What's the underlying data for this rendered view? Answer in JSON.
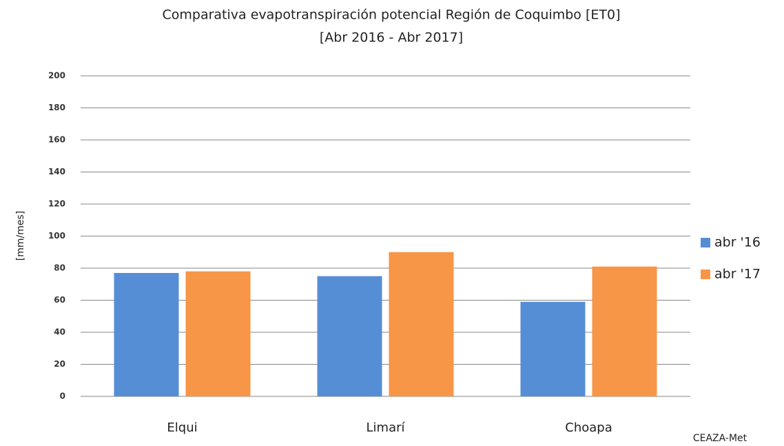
{
  "chart_data": {
    "type": "bar",
    "title": "Comparativa evapotranspiración  potencial Región de Coquimbo [ET0]",
    "subtitle": "[Abr 2016 - Abr 2017]",
    "ylabel": "[mm/mes]",
    "annotation": "CEAZA-Met",
    "categories": [
      "Elqui",
      "Limarí",
      "Choapa"
    ],
    "series": [
      {
        "name": "abr '16",
        "color": "#558ed5",
        "values": [
          77,
          75,
          59
        ]
      },
      {
        "name": "abr '17",
        "color": "#f79646",
        "values": [
          78,
          90,
          81
        ]
      }
    ],
    "ylim": [
      0,
      200
    ],
    "yticks": [
      0,
      20,
      40,
      60,
      80,
      100,
      120,
      140,
      160,
      180,
      200
    ],
    "grid": true,
    "legend": "right"
  }
}
